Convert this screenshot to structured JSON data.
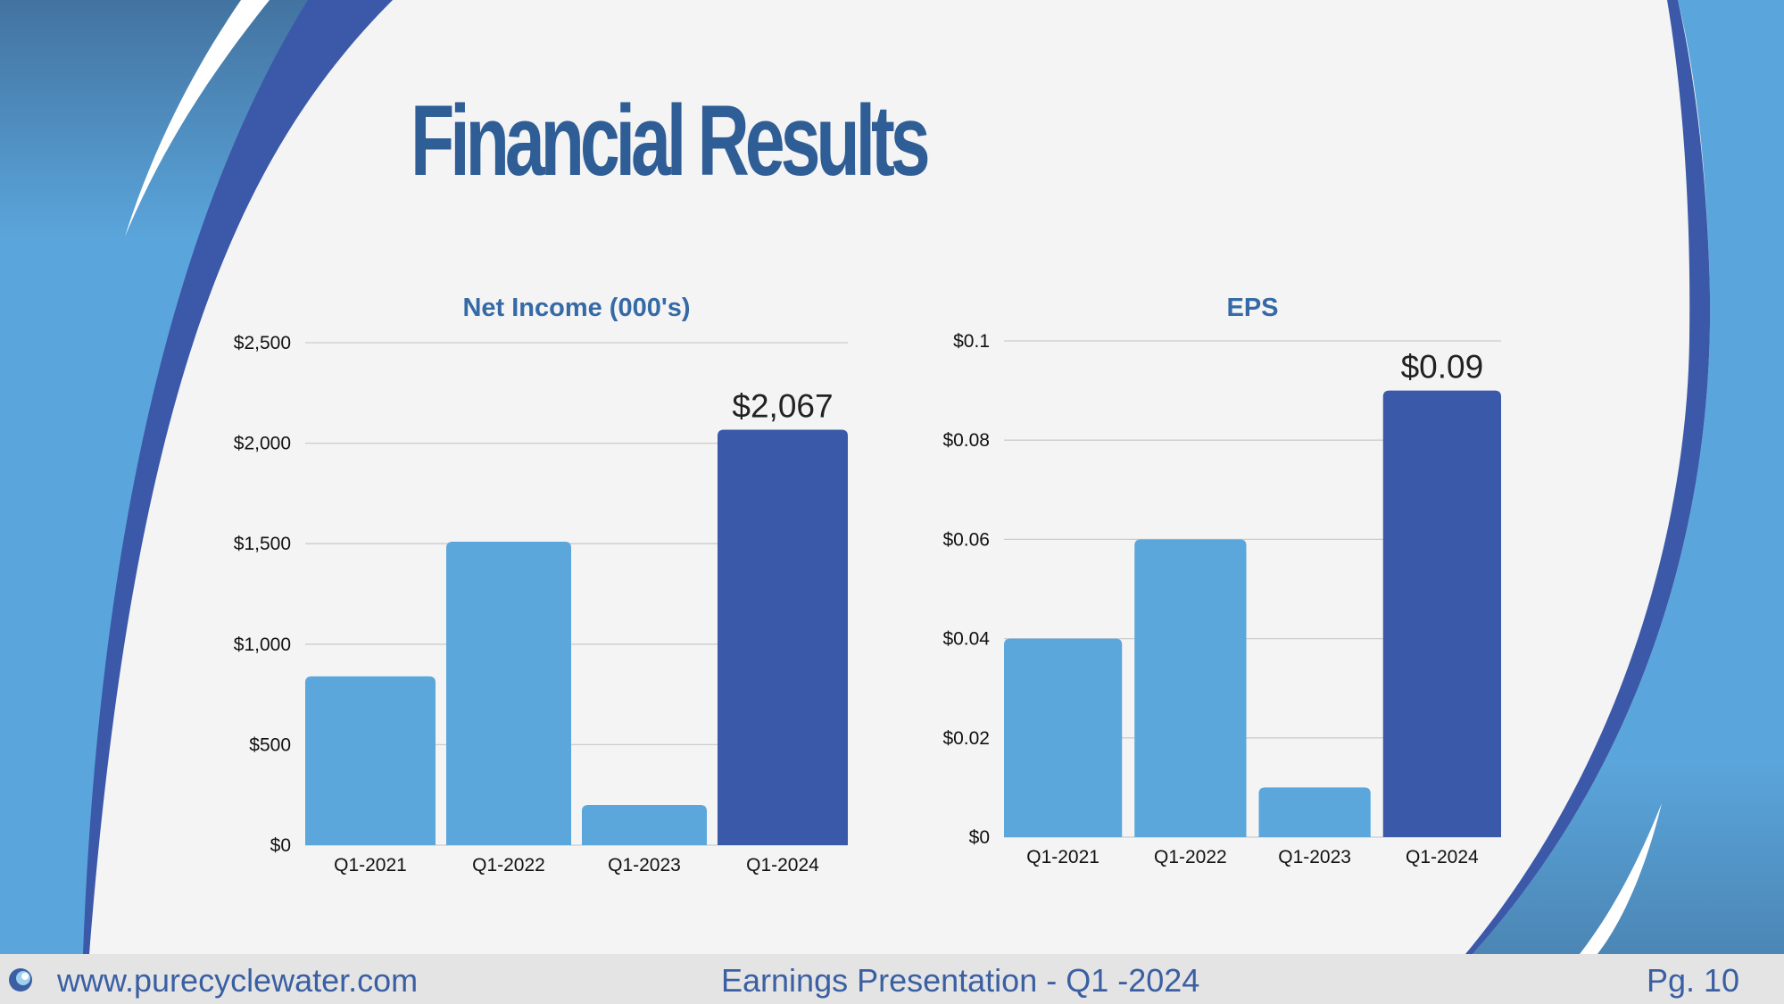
{
  "slide": {
    "title": "Financial Results"
  },
  "colors": {
    "title": "#2f5d95",
    "subtitle": "#356aa6",
    "bar_light": "#5ba6da",
    "bar_dark": "#3a59a9",
    "grid": "#cccccc",
    "footer_text": "#3a5fa2",
    "swoosh_light": "#5aa5db",
    "swoosh_dark": "#3b58a9",
    "swoosh_mid": "#4a88b7"
  },
  "chart_data": [
    {
      "type": "bar",
      "title": "Net Income (000's)",
      "categories": [
        "Q1-2021",
        "Q1-2022",
        "Q1-2023",
        "Q1-2024"
      ],
      "values": [
        840,
        1510,
        200,
        2067
      ],
      "highlight_index": 3,
      "data_label": "$2,067",
      "ylim": [
        0,
        2500
      ],
      "yticks": [
        0,
        500,
        1000,
        1500,
        2000,
        2500
      ],
      "ytick_labels": [
        "$0",
        "$500",
        "$1,000",
        "$1,500",
        "$2,000",
        "$2,500"
      ],
      "xlabel": "",
      "ylabel": "",
      "grid": true
    },
    {
      "type": "bar",
      "title": "EPS",
      "categories": [
        "Q1-2021",
        "Q1-2022",
        "Q1-2023",
        "Q1-2024"
      ],
      "values": [
        0.04,
        0.06,
        0.01,
        0.09
      ],
      "highlight_index": 3,
      "data_label": "$0.09",
      "ylim": [
        0,
        0.1
      ],
      "yticks": [
        0,
        0.02,
        0.04,
        0.06,
        0.08,
        0.1
      ],
      "ytick_labels": [
        "$0",
        "$0.02",
        "$0.04",
        "$0.06",
        "$0.08",
        "$0.1"
      ],
      "xlabel": "",
      "ylabel": "",
      "grid": true
    }
  ],
  "footer": {
    "logo_icon": "water-drop-icon",
    "website": "www.purecyclewater.com",
    "presentation": "Earnings Presentation - Q1 -2024",
    "page": "Pg. 10"
  }
}
